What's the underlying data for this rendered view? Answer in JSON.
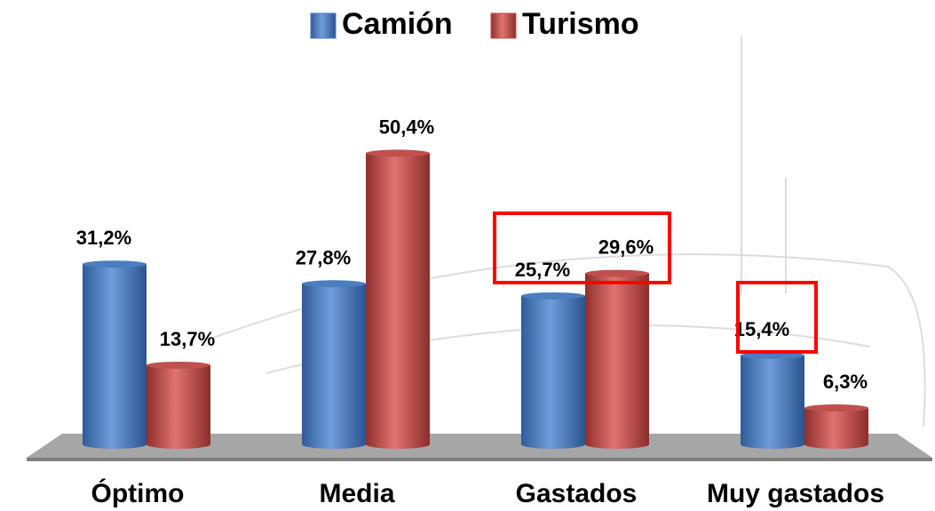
{
  "chart_data": {
    "type": "bar",
    "categories": [
      "Óptimo",
      "Media",
      "Gastados",
      "Muy gastados"
    ],
    "series": [
      {
        "name": "Camión",
        "color": "#4a7ebf",
        "values": [
          31.2,
          27.8,
          25.7,
          15.4
        ],
        "value_labels": [
          "31,2%",
          "27,8%",
          "25,7%",
          "15,4%"
        ]
      },
      {
        "name": "Turismo",
        "color": "#c0504d",
        "values": [
          13.7,
          50.4,
          29.6,
          6.3
        ],
        "value_labels": [
          "13,7%",
          "50,4%",
          "29,6%",
          "6,3%"
        ]
      }
    ],
    "legend": "top"
  }
}
